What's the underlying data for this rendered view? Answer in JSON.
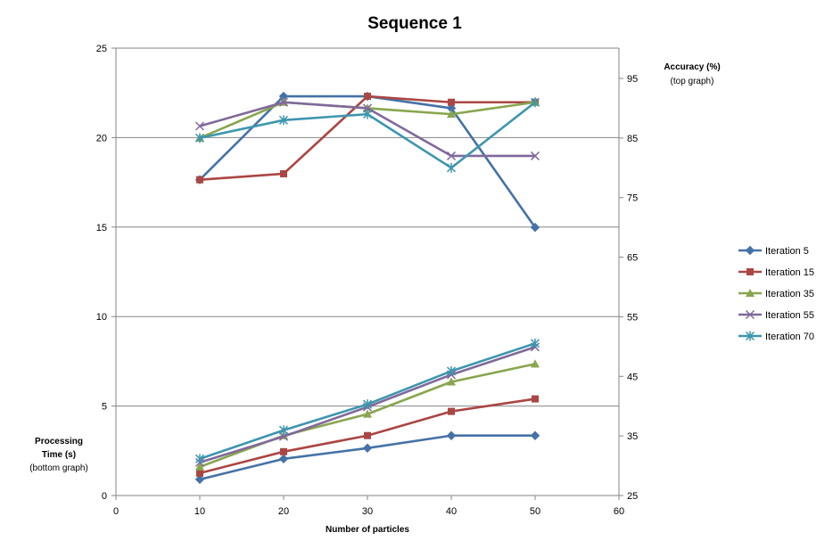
{
  "chart_data": {
    "type": "line",
    "title": "Sequence 1",
    "xlabel": "Number of particles",
    "xlim": [
      0,
      60
    ],
    "x_ticks": [
      "0",
      "10",
      "20",
      "30",
      "40",
      "50",
      "60"
    ],
    "left_axis": {
      "label_line1": "Processing",
      "label_line2": "Time (s)",
      "label_line3": "(bottom  graph)",
      "ylim": [
        0,
        25
      ],
      "ticks": [
        "0",
        "5",
        "10",
        "15",
        "20",
        "25"
      ]
    },
    "right_axis": {
      "label_line1": "Accuracy  (%)",
      "label_line2": "(top graph)",
      "ylim": [
        25,
        100
      ],
      "ticks": [
        "25",
        "35",
        "45",
        "55",
        "65",
        "75",
        "85",
        "95"
      ]
    },
    "grid": true,
    "legend_position": "right",
    "x": [
      10,
      20,
      30,
      40,
      50
    ],
    "series": [
      {
        "name": "Iteration 5",
        "color": "#4572A7",
        "marker": "diamond",
        "accuracy": [
          78,
          92,
          92,
          90,
          70
        ],
        "time": [
          0.9,
          2.05,
          2.65,
          3.35,
          3.35
        ]
      },
      {
        "name": "Iteration 15",
        "color": "#AA4643",
        "marker": "square",
        "accuracy": [
          78,
          79,
          92,
          91,
          91
        ],
        "time": [
          1.25,
          2.45,
          3.35,
          4.7,
          5.4
        ]
      },
      {
        "name": "Iteration 35",
        "color": "#89A54E",
        "marker": "triangle",
        "accuracy": [
          85,
          91,
          90,
          89,
          91
        ],
        "time": [
          1.6,
          3.35,
          4.55,
          6.35,
          7.35
        ]
      },
      {
        "name": "Iteration 55",
        "color": "#80699B",
        "marker": "x",
        "accuracy": [
          87,
          91,
          90,
          82,
          82
        ],
        "time": [
          1.85,
          3.3,
          4.95,
          6.75,
          8.3
        ]
      },
      {
        "name": "Iteration 70",
        "color": "#3D96AE",
        "marker": "star",
        "accuracy": [
          85,
          88,
          89,
          80,
          91
        ],
        "time": [
          2.05,
          3.65,
          5.1,
          6.95,
          8.5
        ]
      }
    ]
  }
}
